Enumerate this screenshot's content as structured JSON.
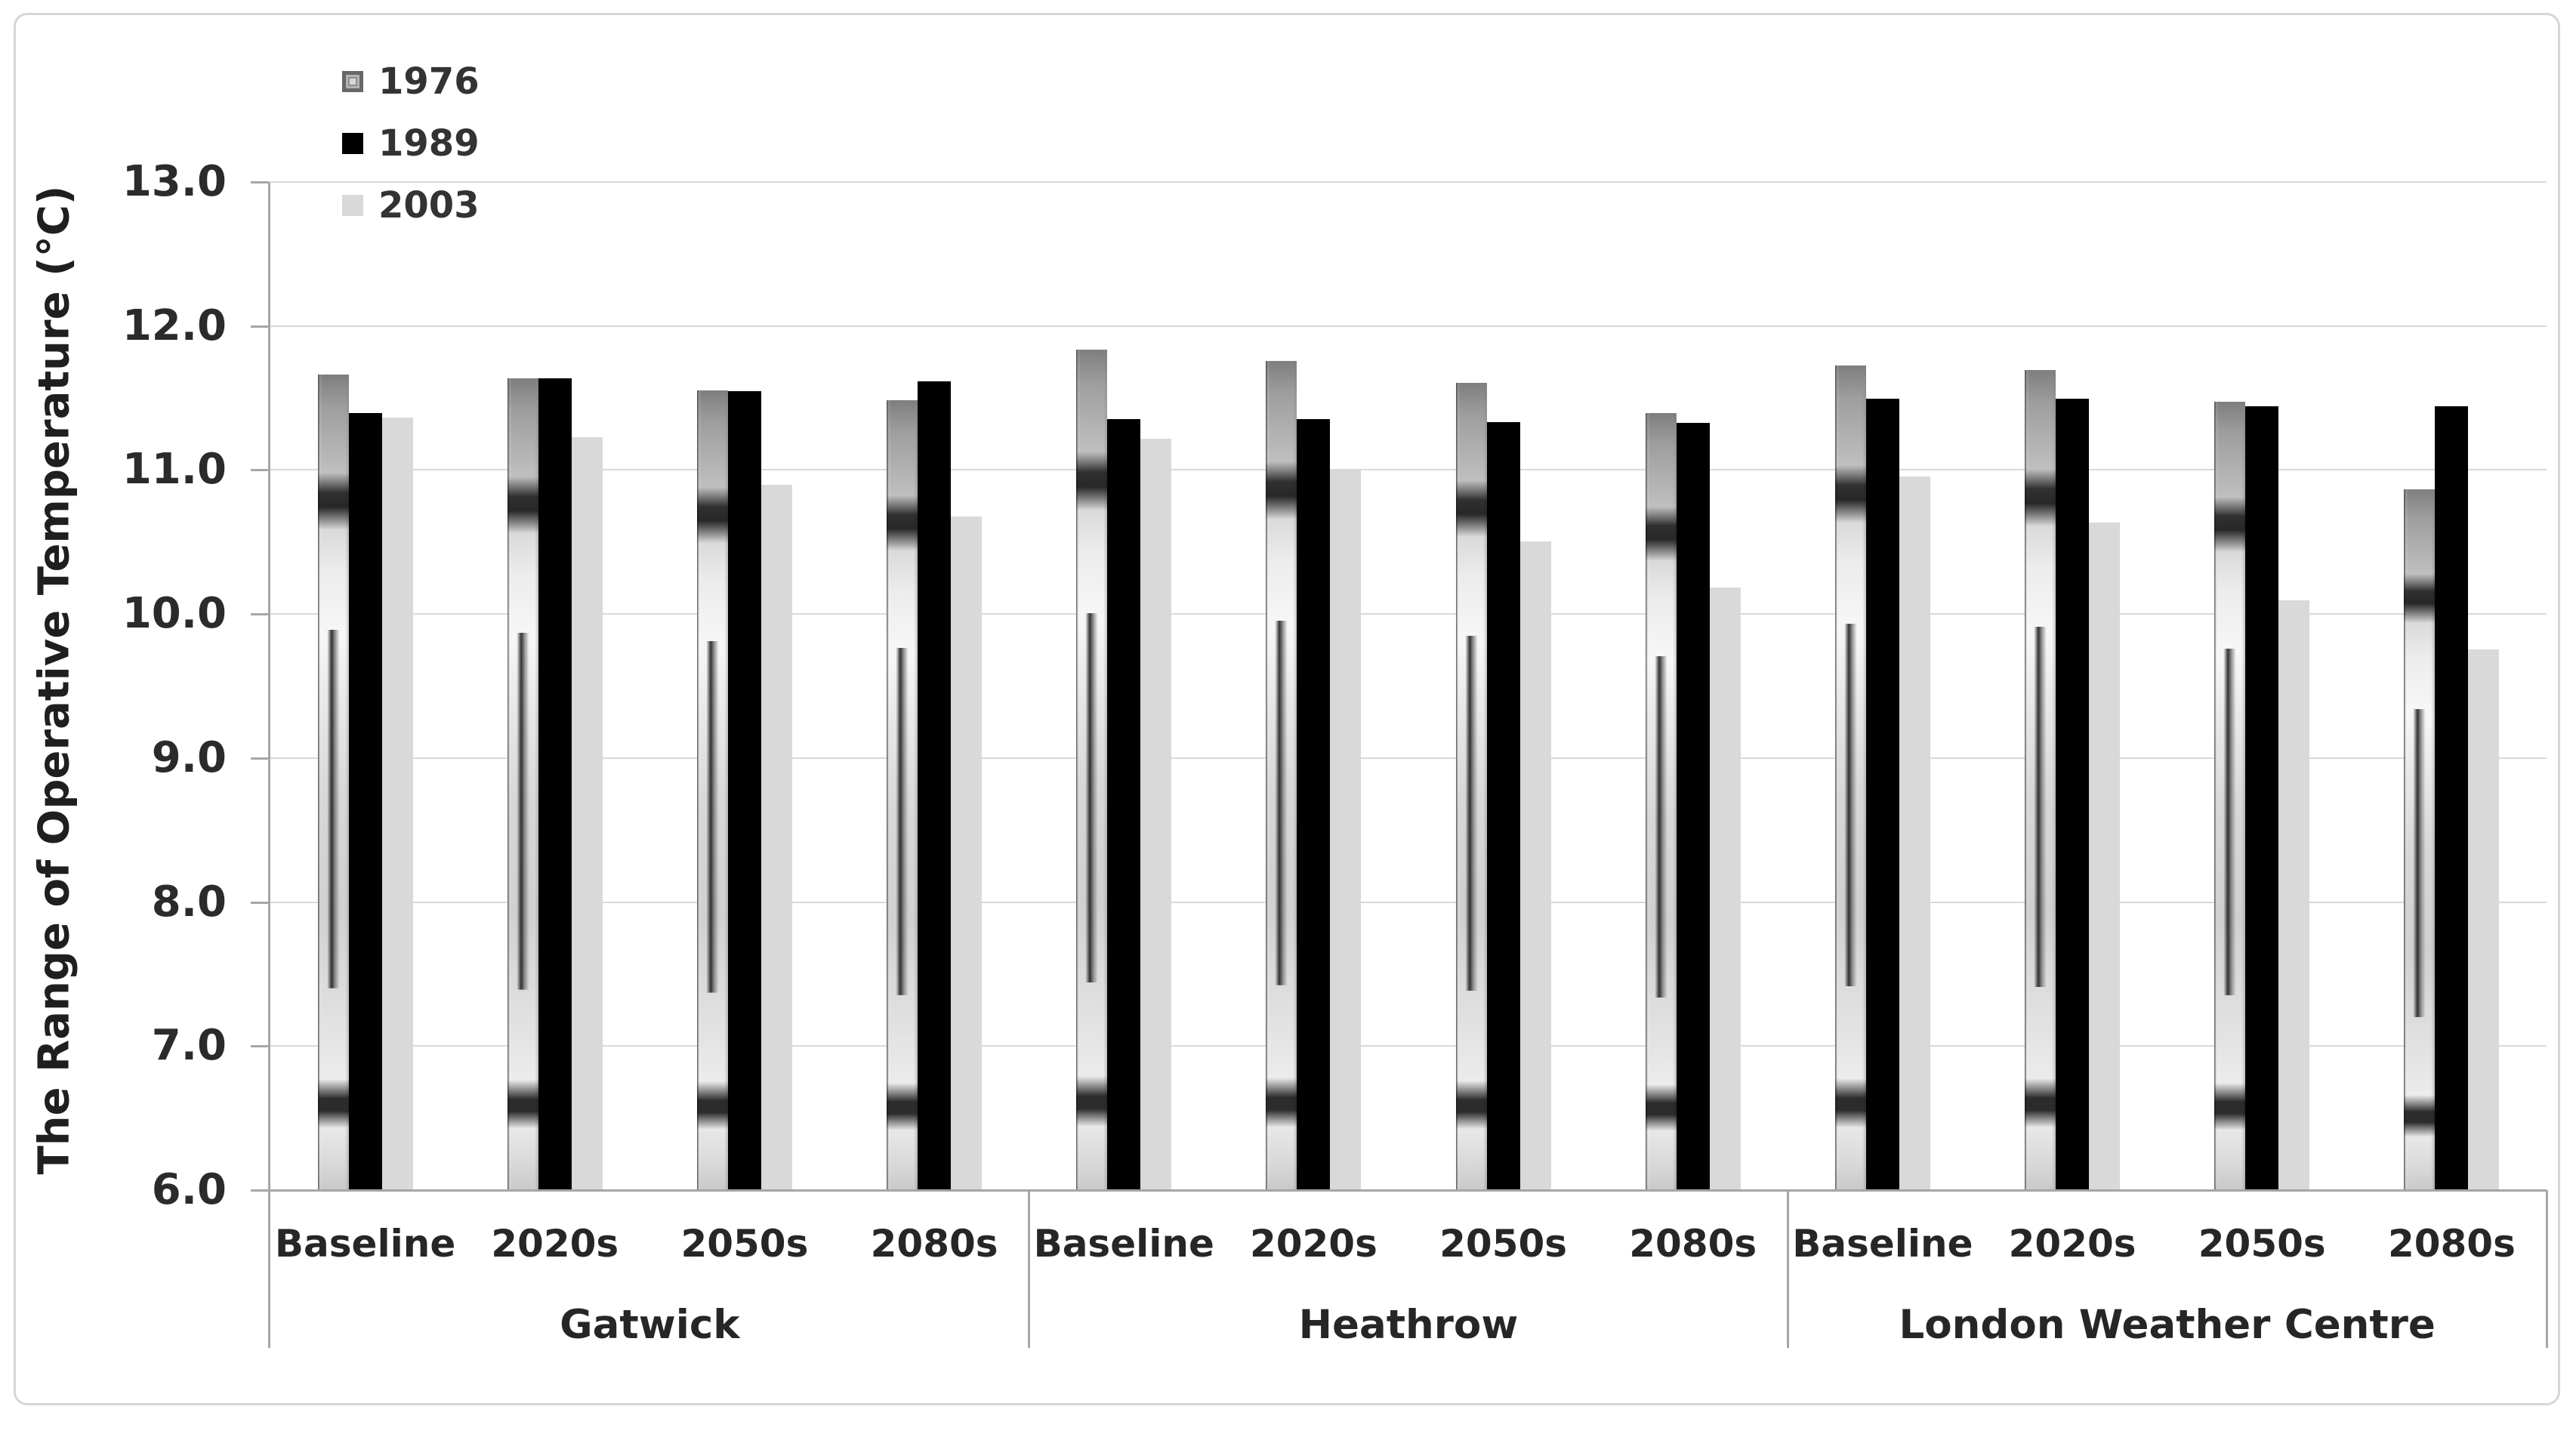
{
  "chart_data": {
    "type": "bar",
    "title": "",
    "y_axis_title": "The Range of Operative Temperature (°C)",
    "ylim": [
      6.0,
      13.0
    ],
    "y_tick_step": 1.0,
    "y_tick_labels": [
      "13.0",
      "12.0",
      "11.0",
      "10.0",
      "9.0",
      "8.0",
      "7.0",
      "6.0"
    ],
    "grid": "horizontal",
    "legend_position": "top-left-inside",
    "categories": [
      {
        "location": "Gatwick",
        "periods": [
          "Baseline",
          "2020s",
          "2050s",
          "2080s"
        ]
      },
      {
        "location": "Heathrow",
        "periods": [
          "Baseline",
          "2020s",
          "2050s",
          "2080s"
        ]
      },
      {
        "location": "London Weather Centre",
        "periods": [
          "Baseline",
          "2020s",
          "2050s",
          "2080s"
        ]
      }
    ],
    "series": [
      {
        "name": "1976",
        "fill": "grayscale-picture-gradient",
        "values": [
          11.66,
          11.63,
          11.55,
          11.48,
          11.83,
          11.75,
          11.6,
          11.39,
          11.72,
          11.69,
          11.47,
          10.86
        ]
      },
      {
        "name": "1989",
        "fill": "#000000",
        "values": [
          11.39,
          11.63,
          11.54,
          11.61,
          11.35,
          11.35,
          11.33,
          11.32,
          11.49,
          11.49,
          11.44,
          11.44
        ]
      },
      {
        "name": "2003",
        "fill": "#d9d9d9",
        "values": [
          11.36,
          11.22,
          10.89,
          10.67,
          11.21,
          11.0,
          10.5,
          10.18,
          10.95,
          10.63,
          10.09,
          9.75
        ]
      }
    ],
    "colors": {
      "gridline": "#d9d9d9",
      "axis": "#a6a6a6",
      "text": "#262626"
    }
  }
}
